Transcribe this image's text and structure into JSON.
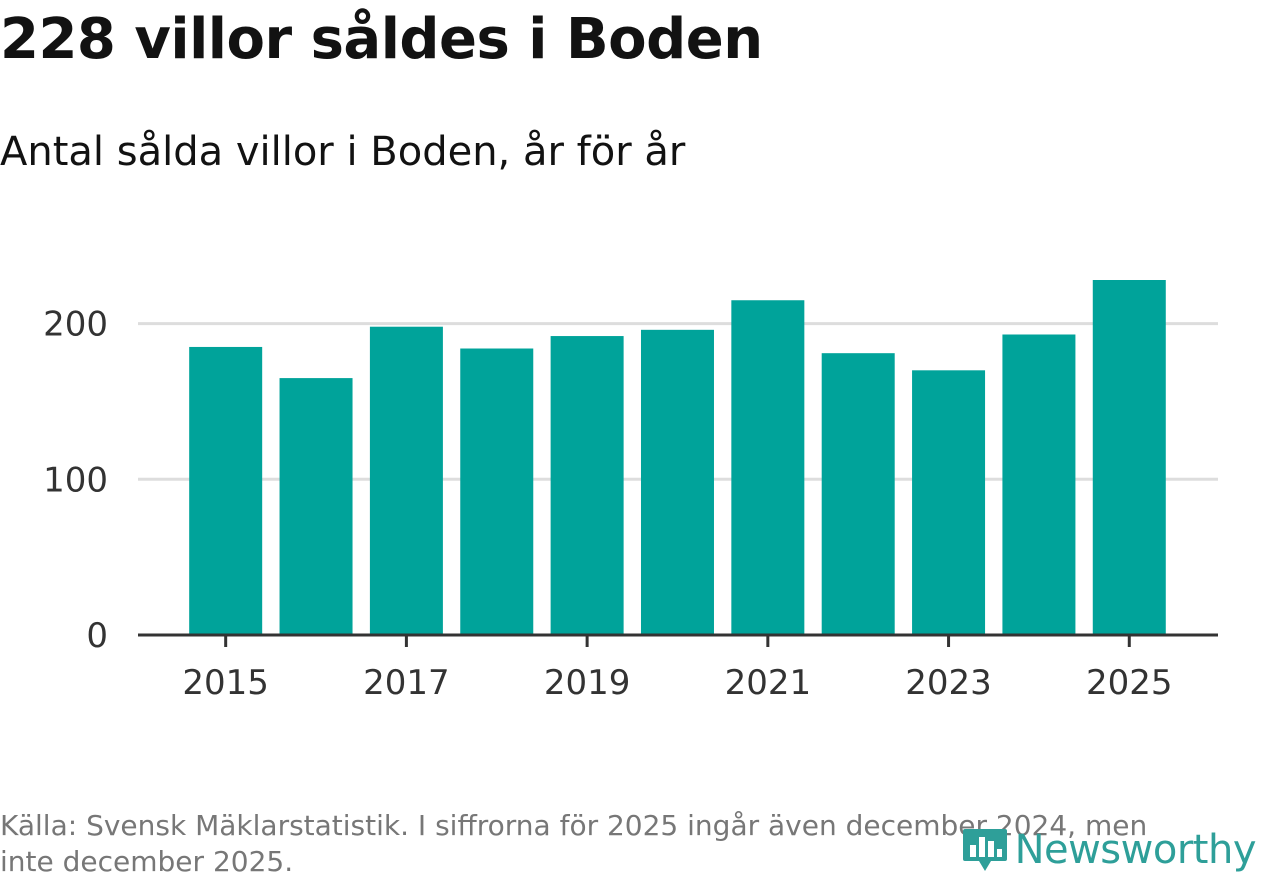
{
  "header": {
    "title": "228 villor såldes i Boden",
    "subtitle": "Antal sålda villor i Boden, år för år"
  },
  "footer": {
    "source": "Källa: Svensk Mäklarstatistik. I siffrorna för 2025 ingår även december 2024, men inte december 2025.",
    "logo_text": "Newsworthy"
  },
  "colors": {
    "bar": "#00A39A",
    "grid": "#dddddd",
    "axis": "#333333",
    "logo": "#2E9F99"
  },
  "logo_icon": "newsworthy-bar-chart-icon",
  "chart_data": {
    "type": "bar",
    "title": "Antal sålda villor i Boden, år för år",
    "xlabel": "",
    "ylabel": "",
    "categories": [
      "2015",
      "2016",
      "2017",
      "2018",
      "2019",
      "2020",
      "2021",
      "2022",
      "2023",
      "2024",
      "2025"
    ],
    "values": [
      185,
      165,
      198,
      184,
      192,
      196,
      215,
      181,
      170,
      193,
      228
    ],
    "ylim": [
      0,
      228
    ],
    "yticks": [
      0,
      100,
      200
    ],
    "xtick_labels": [
      "2015",
      "2017",
      "2019",
      "2021",
      "2023",
      "2025"
    ],
    "grid": true,
    "legend": "none"
  }
}
